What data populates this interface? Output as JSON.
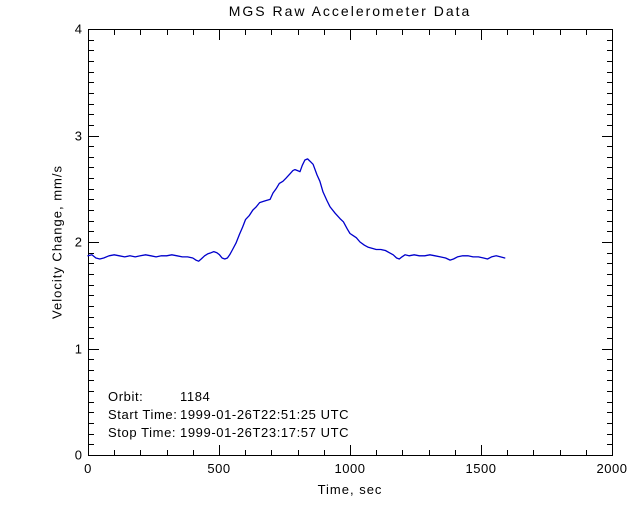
{
  "chart_data": {
    "type": "line",
    "title": "MGS Raw Accelerometer Data",
    "xlabel": "Time, sec",
    "ylabel": "Velocity Change, mm/s",
    "xlim": [
      0,
      2000
    ],
    "ylim": [
      0,
      4
    ],
    "x_major_ticks": [
      0,
      500,
      1000,
      1500,
      2000
    ],
    "x_minor_step": 100,
    "y_major_ticks": [
      0,
      1,
      2,
      3,
      4
    ],
    "y_minor_step": 0.1,
    "grid": false,
    "frame": true,
    "axis_color": "#000000",
    "line_color": "#0000cc",
    "series": [
      {
        "name": "velocity-change",
        "x": [
          0,
          15,
          30,
          45,
          60,
          80,
          100,
          120,
          140,
          160,
          180,
          200,
          220,
          240,
          260,
          280,
          300,
          320,
          340,
          360,
          380,
          400,
          412,
          422,
          432,
          445,
          458,
          470,
          480,
          492,
          502,
          512,
          522,
          532,
          541,
          552,
          565,
          578,
          590,
          601,
          616,
          629,
          642,
          655,
          668,
          680,
          695,
          706,
          718,
          730,
          744,
          756,
          771,
          782,
          790,
          800,
          809,
          818,
          828,
          838,
          847,
          859,
          874,
          885,
          897,
          912,
          924,
          943,
          962,
          975,
          990,
          1000,
          1012,
          1024,
          1038,
          1055,
          1070,
          1085,
          1100,
          1118,
          1135,
          1150,
          1165,
          1178,
          1188,
          1198,
          1210,
          1225,
          1245,
          1265,
          1285,
          1305,
          1325,
          1345,
          1365,
          1382,
          1395,
          1410,
          1430,
          1450,
          1470,
          1490,
          1510,
          1525,
          1540,
          1558,
          1575,
          1591
        ],
        "y": [
          1.87,
          1.88,
          1.85,
          1.84,
          1.85,
          1.87,
          1.88,
          1.87,
          1.86,
          1.87,
          1.86,
          1.87,
          1.88,
          1.87,
          1.86,
          1.87,
          1.87,
          1.88,
          1.87,
          1.86,
          1.86,
          1.85,
          1.83,
          1.82,
          1.84,
          1.87,
          1.89,
          1.9,
          1.91,
          1.9,
          1.88,
          1.85,
          1.84,
          1.85,
          1.88,
          1.93,
          1.99,
          2.07,
          2.14,
          2.21,
          2.25,
          2.3,
          2.33,
          2.37,
          2.38,
          2.39,
          2.4,
          2.46,
          2.5,
          2.55,
          2.57,
          2.6,
          2.64,
          2.67,
          2.68,
          2.67,
          2.66,
          2.72,
          2.77,
          2.78,
          2.76,
          2.73,
          2.63,
          2.57,
          2.47,
          2.39,
          2.33,
          2.27,
          2.22,
          2.19,
          2.12,
          2.08,
          2.06,
          2.04,
          2.0,
          1.97,
          1.95,
          1.94,
          1.93,
          1.93,
          1.92,
          1.9,
          1.88,
          1.85,
          1.84,
          1.86,
          1.88,
          1.87,
          1.88,
          1.87,
          1.87,
          1.88,
          1.87,
          1.86,
          1.85,
          1.83,
          1.84,
          1.86,
          1.87,
          1.87,
          1.86,
          1.86,
          1.85,
          1.84,
          1.86,
          1.87,
          1.86,
          1.85
        ]
      }
    ],
    "annotations": [
      {
        "label": "Orbit:",
        "value": "1184"
      },
      {
        "label": "Start Time:",
        "value": "1999-01-26T22:51:25 UTC"
      },
      {
        "label": "Stop Time:",
        "value": "1999-01-26T23:17:57 UTC"
      }
    ]
  }
}
